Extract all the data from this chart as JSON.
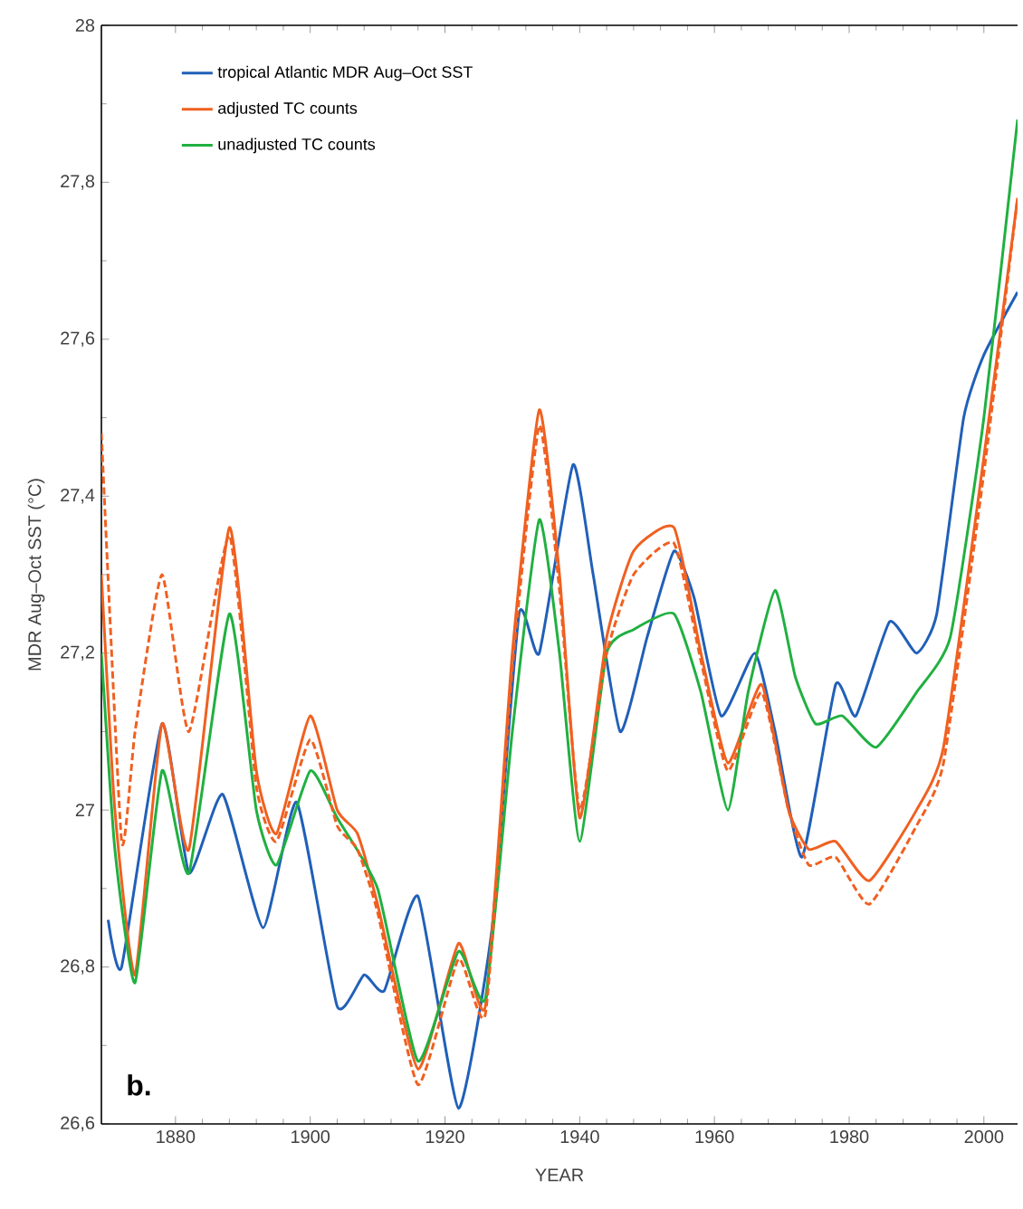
{
  "chart_data": {
    "type": "line",
    "xlabel": "YEAR",
    "ylabel": "MDR Aug–Oct SST (°C)",
    "xlim": [
      1869,
      2005
    ],
    "ylim": [
      26.6,
      28
    ],
    "xticks": [
      1880,
      1900,
      1920,
      1940,
      1960,
      1980,
      2000
    ],
    "yticks": [
      {
        "value": 26.6,
        "label": "26,6"
      },
      {
        "value": 26.8,
        "label": "26,8"
      },
      27,
      {
        "value": 27.2,
        "label": "27,2"
      },
      {
        "value": 27.4,
        "label": "27,4"
      },
      {
        "value": 27.6,
        "label": "27,6"
      },
      {
        "value": 27.8,
        "label": "27,8"
      },
      28
    ],
    "legend": "top left",
    "grid": false,
    "marker": "none",
    "annotations": [
      "b."
    ],
    "series": [
      {
        "name": "tropical Atlantic MDR Aug–Oct SST",
        "color": "#2060b8",
        "line_style": "solid",
        "x": [
          1870,
          1872,
          1878,
          1882,
          1887,
          1893,
          1898,
          1904,
          1908,
          1911,
          1916,
          1922,
          1927,
          1931,
          1934,
          1939,
          1942,
          1946,
          1950,
          1954,
          1957,
          1961,
          1966,
          1969,
          1973,
          1978,
          1981,
          1986,
          1990,
          1993,
          1997,
          2000,
          2005
        ],
        "values": [
          26.86,
          26.8,
          27.11,
          26.92,
          27.02,
          26.85,
          27.01,
          26.75,
          26.79,
          26.77,
          26.89,
          26.62,
          26.85,
          27.25,
          27.2,
          27.44,
          27.3,
          27.1,
          27.22,
          27.33,
          27.27,
          27.12,
          27.2,
          27.1,
          26.94,
          27.16,
          27.12,
          27.24,
          27.2,
          27.25,
          27.5,
          27.58,
          27.66
        ]
      },
      {
        "name": "adjusted TC counts",
        "color": "#f06020",
        "line_style": "solid",
        "x": [
          1869,
          1871,
          1874,
          1878,
          1882,
          1888,
          1892,
          1895,
          1900,
          1904,
          1907,
          1910,
          1916,
          1922,
          1926,
          1930,
          1934,
          1937,
          1940,
          1944,
          1948,
          1954,
          1958,
          1962,
          1967,
          1971,
          1974,
          1978,
          1983,
          1990,
          1994,
          2000,
          2005
        ],
        "values": [
          27.3,
          27.0,
          26.79,
          27.11,
          26.95,
          27.36,
          27.05,
          26.97,
          27.12,
          27.0,
          26.97,
          26.88,
          26.67,
          26.83,
          26.75,
          27.2,
          27.51,
          27.3,
          26.99,
          27.22,
          27.33,
          27.36,
          27.2,
          27.06,
          27.16,
          27.0,
          26.95,
          26.96,
          26.91,
          27.0,
          27.08,
          27.45,
          27.78
        ]
      },
      {
        "name": "unadjusted TC counts",
        "color": "#20b040",
        "line_style": "solid",
        "x": [
          1869,
          1871,
          1874,
          1878,
          1882,
          1888,
          1892,
          1895,
          1900,
          1904,
          1910,
          1916,
          1922,
          1926,
          1930,
          1934,
          1937,
          1940,
          1944,
          1948,
          1954,
          1958,
          1962,
          1965,
          1969,
          1972,
          1975,
          1979,
          1984,
          1990,
          1995,
          2000,
          2005
        ],
        "values": [
          27.2,
          26.95,
          26.78,
          27.05,
          26.92,
          27.25,
          27.0,
          26.93,
          27.05,
          26.99,
          26.9,
          26.68,
          26.82,
          26.76,
          27.1,
          27.37,
          27.2,
          26.96,
          27.2,
          27.23,
          27.25,
          27.15,
          27.0,
          27.15,
          27.28,
          27.17,
          27.11,
          27.12,
          27.08,
          27.15,
          27.22,
          27.5,
          27.88
        ]
      },
      {
        "color": "#f06020",
        "line_style": "dashed",
        "x": [
          1869,
          1872,
          1874,
          1878,
          1882,
          1888,
          1892,
          1895,
          1900,
          1904,
          1907,
          1910,
          1916,
          1922,
          1926,
          1930,
          1934,
          1937,
          1940,
          1944,
          1948,
          1954,
          1958,
          1962,
          1967,
          1971,
          1974,
          1978,
          1983,
          1990,
          1994,
          2000,
          2005
        ],
        "values": [
          27.48,
          26.96,
          27.1,
          27.3,
          27.1,
          27.35,
          27.03,
          26.96,
          27.09,
          26.98,
          26.95,
          26.87,
          26.65,
          26.81,
          26.74,
          27.18,
          27.49,
          27.28,
          27.0,
          27.2,
          27.3,
          27.34,
          27.19,
          27.05,
          27.15,
          27.0,
          26.93,
          26.94,
          26.88,
          26.98,
          27.06,
          27.43,
          27.78
        ]
      }
    ]
  }
}
